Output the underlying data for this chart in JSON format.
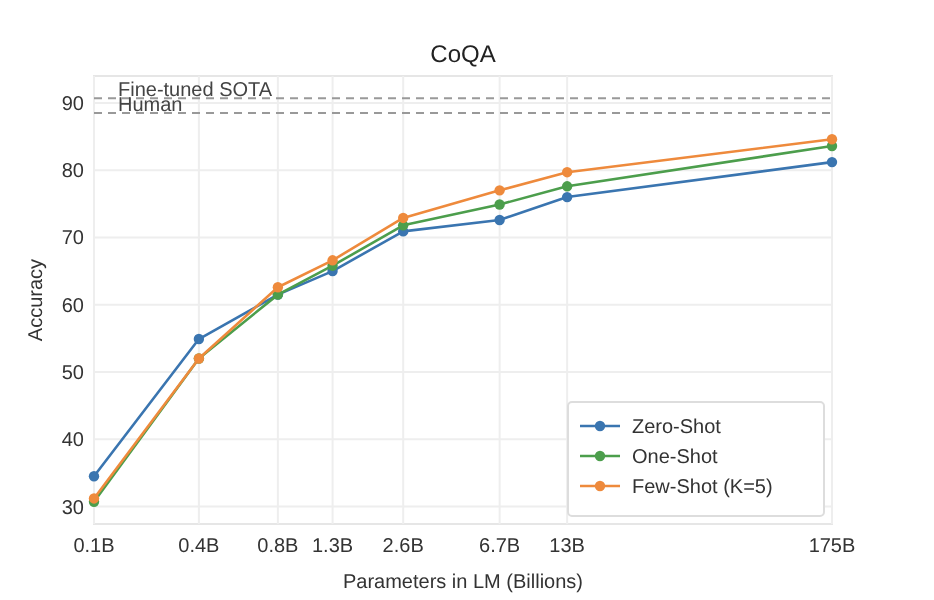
{
  "chart_data": {
    "type": "line",
    "title": "CoQA",
    "xlabel": "Parameters in LM (Billions)",
    "ylabel": "Accuracy",
    "x": [
      0.125,
      0.35,
      0.76,
      1.3,
      2.6,
      6.7,
      13,
      175
    ],
    "series": [
      {
        "name": "Zero-Shot",
        "color": "#3a75b0",
        "values": [
          34.5,
          54.9,
          61.5,
          65,
          70.9,
          72.6,
          76,
          81.2
        ]
      },
      {
        "name": "One-Shot",
        "color": "#4c9e4c",
        "values": [
          30.7,
          52,
          61.5,
          65.8,
          71.8,
          74.9,
          77.6,
          83.6
        ]
      },
      {
        "name": "Few-Shot (K=5)",
        "color": "#ee8a3c",
        "values": [
          31.2,
          52,
          62.6,
          66.6,
          72.9,
          77,
          79.7,
          84.6
        ]
      }
    ],
    "log": "x",
    "xlim": [
      0.125,
      175
    ],
    "xticks": [
      {
        "value": 0.125,
        "label": "0.1B"
      },
      {
        "value": 0.35,
        "label": "0.4B"
      },
      {
        "value": 0.76,
        "label": "0.8B"
      },
      {
        "value": 1.3,
        "label": "1.3B"
      },
      {
        "value": 2.6,
        "label": "2.6B"
      },
      {
        "value": 6.7,
        "label": "6.7B"
      },
      {
        "value": 13,
        "label": "13B"
      },
      {
        "value": 175,
        "label": "175B"
      }
    ],
    "ylim": [
      27.4,
      94
    ],
    "yticks": [
      30,
      40,
      50,
      60,
      70,
      80,
      90
    ],
    "ref_lines": [
      {
        "axis": "y",
        "value": 90.7,
        "label": "Fine-tuned SOTA",
        "color": "#999999",
        "line_style": "dashed"
      },
      {
        "axis": "y",
        "value": 88.5,
        "label": "Human",
        "color": "#999999",
        "line_style": "dashed"
      }
    ],
    "grid": true,
    "legend": "bottom right",
    "marker": "circle",
    "line_style": "solid"
  }
}
